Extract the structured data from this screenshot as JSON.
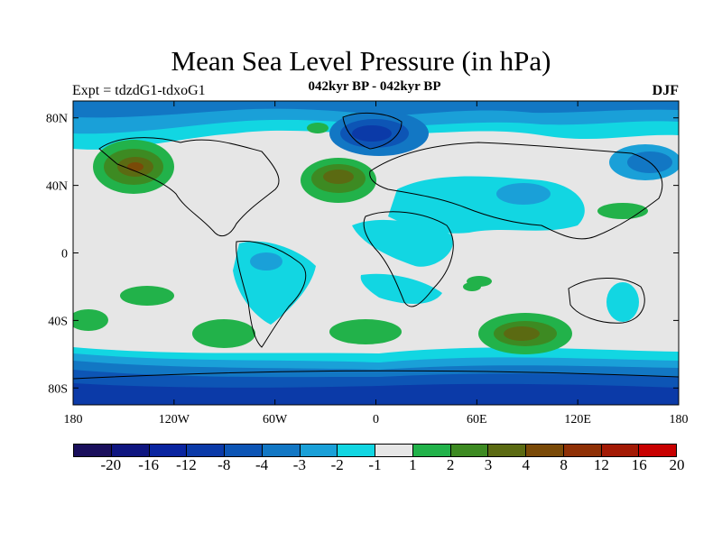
{
  "header": {
    "title": "Mean Sea Level Pressure (in hPa)",
    "expt": "Expt = tdzdG1-tdxoG1",
    "subtitle": "042kyr BP - 042kyr BP",
    "season": "DJF"
  },
  "axes": {
    "lat_ticks": [
      "80N",
      "40N",
      "0",
      "40S",
      "80S"
    ],
    "lat_values": [
      80,
      40,
      0,
      -40,
      -80
    ],
    "lon_ticks": [
      "180",
      "120W",
      "60W",
      "0",
      "60E",
      "120E",
      "180"
    ],
    "lon_values": [
      -180,
      -120,
      -60,
      0,
      60,
      120,
      180
    ],
    "lat_range": [
      -90,
      90
    ],
    "lon_range": [
      -180,
      180
    ]
  },
  "colorbar": {
    "labels": [
      "-20",
      "-16",
      "-12",
      "-8",
      "-4",
      "-3",
      "-2",
      "-1",
      "1",
      "2",
      "3",
      "4",
      "8",
      "12",
      "16",
      "20"
    ],
    "colors": [
      "#1a0f5c",
      "#0f1680",
      "#0a25a0",
      "#0b3aa8",
      "#0d55b5",
      "#1277c4",
      "#1aa0d8",
      "#12d6e2",
      "#e6e6e6",
      "#22b24a",
      "#3d8a22",
      "#5b6a12",
      "#7a4a08",
      "#8f3006",
      "#a31a05",
      "#c80000"
    ]
  },
  "legend": {
    "neutral": "#e6e6e6",
    "coast": "#000000"
  }
}
